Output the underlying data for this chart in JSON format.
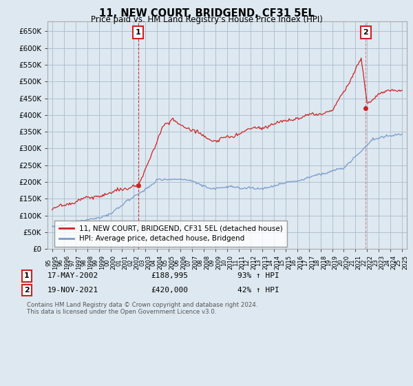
{
  "title": "11, NEW COURT, BRIDGEND, CF31 5EL",
  "subtitle": "Price paid vs. HM Land Registry's House Price Index (HPI)",
  "ylim": [
    0,
    680000
  ],
  "yticks": [
    0,
    50000,
    100000,
    150000,
    200000,
    250000,
    300000,
    350000,
    400000,
    450000,
    500000,
    550000,
    600000,
    650000
  ],
  "ytick_labels": [
    "£0",
    "£50K",
    "£100K",
    "£150K",
    "£200K",
    "£250K",
    "£300K",
    "£350K",
    "£400K",
    "£450K",
    "£500K",
    "£550K",
    "£600K",
    "£650K"
  ],
  "hpi_color": "#7799cc",
  "price_color": "#cc2222",
  "annotation_box_color": "#cc2222",
  "background_color": "#dde8f0",
  "plot_bg_color": "#dde8f0",
  "grid_color": "#aabbcc",
  "point1": {
    "date_num": 2002.37,
    "value": 188995,
    "label": "1"
  },
  "point2": {
    "date_num": 2021.88,
    "value": 420000,
    "label": "2"
  },
  "footer1": "Contains HM Land Registry data © Crown copyright and database right 2024.",
  "footer2": "This data is licensed under the Open Government Licence v3.0.",
  "legend_line1": "11, NEW COURT, BRIDGEND, CF31 5EL (detached house)",
  "legend_line2": "HPI: Average price, detached house, Bridgend",
  "annot1_date": "17-MAY-2002",
  "annot1_price": "£188,995",
  "annot1_hpi": "93% ↑ HPI",
  "annot2_date": "19-NOV-2021",
  "annot2_price": "£420,000",
  "annot2_hpi": "42% ↑ HPI",
  "xlim_left": 1994.6,
  "xlim_right": 2025.4
}
